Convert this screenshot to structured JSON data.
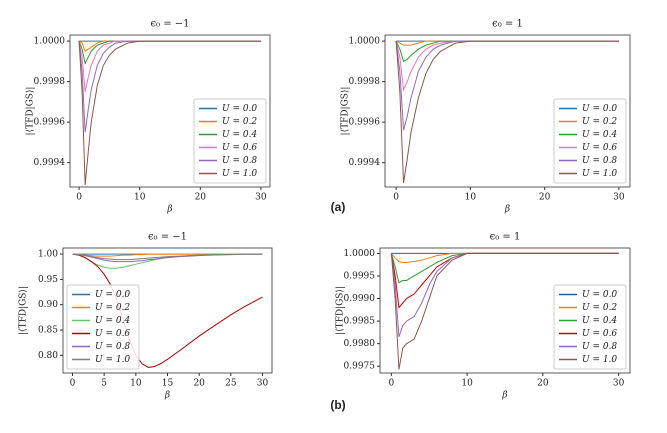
{
  "chart_data": [
    {
      "type": "line",
      "title": "ϵ₀ = −1",
      "xlabel": "β",
      "ylabel": "|⟨TFD|GS⟩|",
      "legend": "lower right",
      "x": [
        0,
        0.5,
        1,
        1.5,
        2,
        3,
        4,
        5,
        6,
        8,
        10,
        12,
        15,
        20,
        25,
        30
      ],
      "xlim": [
        -1.5,
        31.5
      ],
      "xticks": [
        0,
        10,
        20,
        30
      ],
      "ylim": [
        0.99928,
        1.00003
      ],
      "yticks": [
        0.9994,
        0.9996,
        0.9998,
        {
          "value": 1,
          "label": "1.0000"
        }
      ],
      "series": [
        {
          "name": "U = 0.0",
          "color": "#1f77b4",
          "values": [
            1,
            1,
            1,
            1,
            1,
            1,
            1,
            1,
            1,
            1,
            1,
            1,
            1,
            1,
            1,
            1
          ]
        },
        {
          "name": "U = 0.2",
          "color": "#ff7f0e",
          "values": [
            1,
            0.99999,
            0.99995,
            0.99996,
            0.99997,
            0.99999,
            1,
            1,
            1,
            1,
            1,
            1,
            1,
            1,
            1,
            1
          ]
        },
        {
          "name": "U = 0.4",
          "color": "#2ca02c",
          "values": [
            1,
            0.99996,
            0.99989,
            0.99992,
            0.99995,
            0.99998,
            0.99999,
            1,
            1,
            1,
            1,
            1,
            1,
            1,
            1,
            1
          ]
        },
        {
          "name": "U = 0.6",
          "color": "#e377c2",
          "values": [
            1,
            0.99992,
            0.99975,
            0.99982,
            0.99988,
            0.99995,
            0.99998,
            0.99999,
            1,
            1,
            1,
            1,
            1,
            1,
            1,
            1
          ]
        },
        {
          "name": "U = 0.8",
          "color": "#9467bd",
          "values": [
            1,
            0.99985,
            0.99955,
            0.99966,
            0.99976,
            0.99988,
            0.99994,
            0.99997,
            0.99999,
            1,
            1,
            1,
            1,
            1,
            1,
            1
          ]
        },
        {
          "name": "U = 1.0",
          "color": "#8c564b",
          "values": [
            1,
            0.99975,
            0.99929,
            0.99945,
            0.9996,
            0.99978,
            0.99988,
            0.99993,
            0.99996,
            0.99999,
            1,
            1,
            1,
            1,
            1,
            1
          ]
        }
      ]
    },
    {
      "type": "line",
      "title": "ϵ₀ = 1",
      "xlabel": "β",
      "ylabel": "|⟨TFD|GS⟩|",
      "legend": "lower right",
      "x": [
        0,
        0.5,
        1,
        1.5,
        2,
        3,
        4,
        5,
        6,
        8,
        10,
        12,
        15,
        20,
        25,
        30
      ],
      "xlim": [
        -1.5,
        31.5
      ],
      "xticks": [
        0,
        10,
        20,
        30
      ],
      "ylim": [
        0.99928,
        1.00003
      ],
      "yticks": [
        0.9994,
        0.9996,
        0.9998,
        {
          "value": 1,
          "label": "1.0000"
        }
      ],
      "series": [
        {
          "name": "U = 0.0",
          "color": "#1f77b4",
          "values": [
            1,
            1,
            1,
            1,
            1,
            1,
            1,
            1,
            1,
            1,
            1,
            1,
            1,
            1,
            1,
            1
          ]
        },
        {
          "name": "U = 0.2",
          "color": "#ff7f0e",
          "values": [
            1,
            0.99999,
            0.99998,
            0.99998,
            0.99998,
            0.99999,
            1,
            1,
            1,
            1,
            1,
            1,
            1,
            1,
            1,
            1
          ]
        },
        {
          "name": "U = 0.4",
          "color": "#2ca02c",
          "values": [
            1,
            0.99996,
            0.9999,
            0.99991,
            0.99993,
            0.99996,
            0.99998,
            0.99999,
            1,
            1,
            1,
            1,
            1,
            1,
            1,
            1
          ]
        },
        {
          "name": "U = 0.6",
          "color": "#e377c2",
          "values": [
            1,
            0.99992,
            0.99976,
            0.9998,
            0.99985,
            0.99992,
            0.99996,
            0.99998,
            0.99999,
            1,
            1,
            1,
            1,
            1,
            1,
            1
          ]
        },
        {
          "name": "U = 0.8",
          "color": "#9467bd",
          "values": [
            1,
            0.99985,
            0.99956,
            0.99963,
            0.99972,
            0.99985,
            0.99992,
            0.99996,
            0.99998,
            1,
            1,
            1,
            1,
            1,
            1,
            1
          ]
        },
        {
          "name": "U = 1.0",
          "color": "#8c564b",
          "values": [
            1,
            0.99975,
            0.9993,
            0.99942,
            0.99955,
            0.99972,
            0.99984,
            0.99991,
            0.99995,
            0.99999,
            1,
            1,
            1,
            1,
            1,
            1
          ]
        }
      ]
    },
    {
      "type": "line",
      "title": "ϵ₀ = −1",
      "xlabel": "β",
      "ylabel": "|⟨TFD|GS⟩|",
      "legend": "lower left",
      "x": [
        0,
        1,
        2,
        3,
        4,
        5,
        6,
        7,
        8,
        9,
        10,
        11,
        12,
        13,
        14,
        15,
        17,
        20,
        22,
        25,
        27,
        30
      ],
      "xlim": [
        -1.5,
        31.5
      ],
      "xticks": [
        0,
        5,
        10,
        15,
        20,
        25,
        30
      ],
      "ylim": [
        0.765,
        1.012
      ],
      "yticks": [
        {
          "value": 0.8,
          "label": "0.80"
        },
        0.85,
        {
          "value": 0.9,
          "label": "0.90"
        },
        0.95,
        {
          "value": 1,
          "label": "1.00"
        }
      ],
      "series": [
        {
          "name": "U = 0.0",
          "color": "#1f77b4",
          "values": [
            1,
            1,
            1,
            1,
            1,
            1,
            1,
            1,
            1,
            1,
            1,
            1,
            1,
            1,
            1,
            1,
            1,
            1,
            1,
            1,
            1,
            1
          ]
        },
        {
          "name": "U = 0.2",
          "color": "#ff7f0e",
          "values": [
            1,
            0.9995,
            0.998,
            0.997,
            0.996,
            0.996,
            0.996,
            0.997,
            0.998,
            0.998,
            0.999,
            0.999,
            1,
            1,
            1,
            1,
            1,
            1,
            1,
            1,
            1,
            1
          ]
        },
        {
          "name": "U = 0.4",
          "color": "#5fc85f",
          "values": [
            1,
            0.998,
            0.993,
            0.985,
            0.978,
            0.974,
            0.972,
            0.972,
            0.974,
            0.977,
            0.98,
            0.983,
            0.986,
            0.989,
            0.991,
            0.993,
            0.996,
            0.998,
            0.999,
            1,
            1,
            1
          ]
        },
        {
          "name": "U = 0.6",
          "color": "#b00000",
          "values": [
            1,
            0.998,
            0.993,
            0.985,
            0.975,
            0.96,
            0.94,
            0.91,
            0.87,
            0.83,
            0.8,
            0.783,
            0.776,
            0.778,
            0.784,
            0.792,
            0.81,
            0.838,
            0.855,
            0.88,
            0.895,
            0.915
          ]
        },
        {
          "name": "U = 0.8",
          "color": "#9467bd",
          "values": [
            1,
            0.999,
            0.997,
            0.994,
            0.991,
            0.988,
            0.986,
            0.985,
            0.985,
            0.985,
            0.986,
            0.987,
            0.989,
            0.99,
            0.992,
            0.993,
            0.995,
            0.997,
            0.998,
            0.999,
            1,
            1
          ]
        },
        {
          "name": "U = 1.0",
          "color": "#7f7f7f",
          "values": [
            1,
            0.999,
            0.997,
            0.995,
            0.993,
            0.991,
            0.99,
            0.989,
            0.989,
            0.989,
            0.99,
            0.991,
            0.992,
            0.993,
            0.994,
            0.995,
            0.996,
            0.998,
            0.999,
            0.999,
            1,
            1
          ]
        }
      ]
    },
    {
      "type": "line",
      "title": "ϵ₀ = 1",
      "xlabel": "β",
      "ylabel": "|⟨TFD|GS⟩|",
      "legend": "lower right",
      "x": [
        0,
        0.5,
        1,
        1.5,
        2,
        3,
        4,
        5,
        6,
        8,
        10,
        12,
        15,
        20,
        25,
        30
      ],
      "xlim": [
        -1.5,
        31.5
      ],
      "xticks": [
        0,
        10,
        20,
        30
      ],
      "ylim": [
        0.99735,
        1.00012
      ],
      "yticks": [
        0.9975,
        {
          "value": 0.998,
          "label": "0.9980"
        },
        0.9985,
        {
          "value": 0.999,
          "label": "0.9990"
        },
        0.9995,
        {
          "value": 1,
          "label": "1.0000"
        }
      ],
      "series": [
        {
          "name": "U = 0.0",
          "color": "#1f5fa8",
          "values": [
            1,
            1,
            1,
            1,
            1,
            1,
            1,
            1,
            1,
            1,
            1,
            1,
            1,
            1,
            1,
            1
          ]
        },
        {
          "name": "U = 0.2",
          "color": "#ff7f0e",
          "values": [
            1,
            0.9999,
            0.99982,
            0.9998,
            0.9998,
            0.99982,
            0.99985,
            0.9999,
            0.99995,
            1,
            1,
            1,
            1,
            1,
            1,
            1
          ]
        },
        {
          "name": "U = 0.4",
          "color": "#2ca02c",
          "values": [
            1,
            0.9997,
            0.99935,
            0.9994,
            0.9994,
            0.9995,
            0.9996,
            0.9997,
            0.9998,
            0.99995,
            1,
            1,
            1,
            1,
            1,
            1
          ]
        },
        {
          "name": "U = 0.6",
          "color": "#c00000",
          "values": [
            1,
            0.9995,
            0.9988,
            0.9989,
            0.999,
            0.9991,
            0.9993,
            0.9995,
            0.9997,
            0.9999,
            1,
            1,
            1,
            1,
            1,
            1
          ]
        },
        {
          "name": "U = 0.8",
          "color": "#9467bd",
          "values": [
            1,
            0.9993,
            0.99815,
            0.9984,
            0.9985,
            0.9986,
            0.9989,
            0.9993,
            0.9996,
            0.9999,
            1,
            1,
            1,
            1,
            1,
            1
          ]
        },
        {
          "name": "U = 1.0",
          "color": "#8c564b",
          "values": [
            1,
            0.999,
            0.99743,
            0.9979,
            0.998,
            0.9981,
            0.9985,
            0.999,
            0.9995,
            0.99985,
            1,
            1,
            1,
            1,
            1,
            1
          ]
        }
      ]
    }
  ],
  "panel_labels": [
    "(a)",
    "(b)"
  ]
}
